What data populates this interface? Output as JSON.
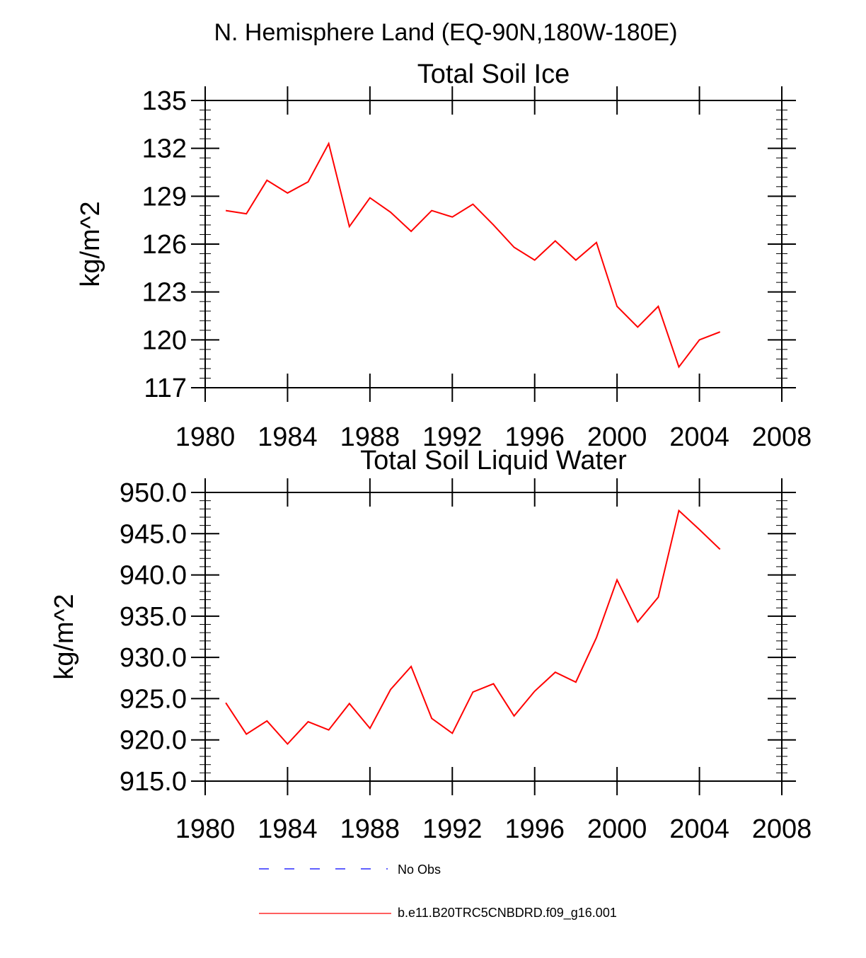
{
  "page_title": "N. Hemisphere Land (EQ-90N,180W-180E)",
  "chart_data": [
    {
      "type": "line",
      "title": "Total Soil Ice",
      "xlabel": "",
      "ylabel": "kg/m^2",
      "xlim": [
        1980,
        2008
      ],
      "ylim": [
        117,
        135
      ],
      "x_ticks": [
        1980,
        1984,
        1988,
        1992,
        1996,
        2000,
        2004,
        2008
      ],
      "x_tick_labels": [
        "1980",
        "1984",
        "1988",
        "1992",
        "1996",
        "2000",
        "2004",
        "2008"
      ],
      "y_ticks": [
        117,
        120,
        123,
        126,
        129,
        132,
        135
      ],
      "y_tick_labels": [
        "117",
        "120",
        "123",
        "126",
        "129",
        "132",
        "135"
      ],
      "y_minor_step": 0.6,
      "grid": false,
      "x": [
        1981,
        1982,
        1983,
        1984,
        1985,
        1986,
        1987,
        1988,
        1989,
        1990,
        1991,
        1992,
        1993,
        1994,
        1995,
        1996,
        1997,
        1998,
        1999,
        2000,
        2001,
        2002,
        2003,
        2004,
        2005
      ],
      "series": [
        {
          "name": "b.e11.B20TRC5CNBDRD.f09_g16.001",
          "color": "#ff0000",
          "values": [
            128.1,
            127.9,
            130.0,
            129.2,
            129.9,
            132.3,
            127.1,
            128.9,
            128.0,
            126.8,
            128.1,
            127.7,
            128.5,
            127.2,
            125.8,
            125.0,
            126.2,
            125.0,
            126.1,
            122.1,
            120.8,
            122.1,
            118.3,
            120.0,
            120.5
          ]
        }
      ]
    },
    {
      "type": "line",
      "title": "Total Soil Liquid Water",
      "xlabel": "",
      "ylabel": "kg/m^2",
      "xlim": [
        1980,
        2008
      ],
      "ylim": [
        915,
        950
      ],
      "x_ticks": [
        1980,
        1984,
        1988,
        1992,
        1996,
        2000,
        2004,
        2008
      ],
      "x_tick_labels": [
        "1980",
        "1984",
        "1988",
        "1992",
        "1996",
        "2000",
        "2004",
        "2008"
      ],
      "y_ticks": [
        915,
        920,
        925,
        930,
        935,
        940,
        945,
        950
      ],
      "y_tick_labels": [
        "915.0",
        "920.0",
        "925.0",
        "930.0",
        "935.0",
        "940.0",
        "945.0",
        "950.0"
      ],
      "y_minor_step": 1,
      "grid": false,
      "x": [
        1981,
        1982,
        1983,
        1984,
        1985,
        1986,
        1987,
        1988,
        1989,
        1990,
        1991,
        1992,
        1993,
        1994,
        1995,
        1996,
        1997,
        1998,
        1999,
        2000,
        2001,
        2002,
        2003,
        2004,
        2005
      ],
      "series": [
        {
          "name": "b.e11.B20TRC5CNBDRD.f09_g16.001",
          "color": "#ff0000",
          "values": [
            924.5,
            920.7,
            922.3,
            919.5,
            922.2,
            921.2,
            924.4,
            921.4,
            926.1,
            928.9,
            922.6,
            920.8,
            925.8,
            926.8,
            922.9,
            925.9,
            928.2,
            927.0,
            932.4,
            939.4,
            934.3,
            937.3,
            947.8,
            945.5,
            943.1
          ]
        }
      ]
    }
  ],
  "legend": {
    "placement": "bottom",
    "entries": [
      {
        "label": "No Obs",
        "color": "#0000ff",
        "style": "dashed"
      },
      {
        "label": "b.e11.B20TRC5CNBDRD.f09_g16.001",
        "color": "#ff0000",
        "style": "solid"
      }
    ]
  }
}
